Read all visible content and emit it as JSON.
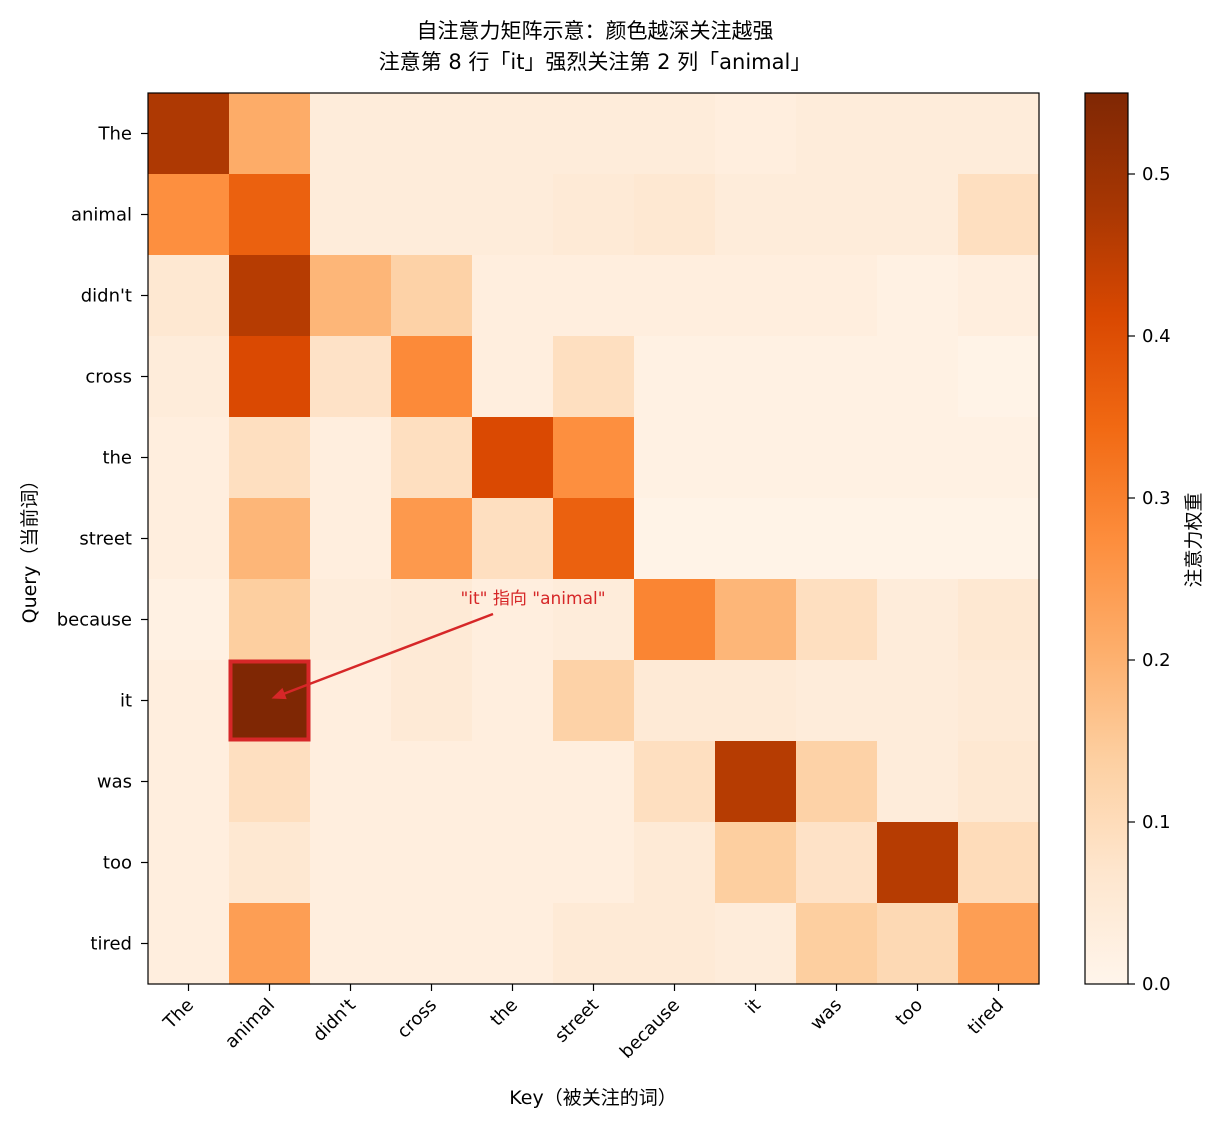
{
  "chart_data": {
    "type": "heatmap",
    "title": "自注意力矩阵示意：颜色越深关注越强",
    "subtitle": "注意第 8 行「it」强烈关注第 2 列「animal」",
    "xlabel": "Key（被关注的词）",
    "ylabel": "Query（当前词）",
    "x_tokens": [
      "The",
      "animal",
      "didn't",
      "cross",
      "the",
      "street",
      "because",
      "it",
      "was",
      "too",
      "tired"
    ],
    "y_tokens": [
      "The",
      "animal",
      "didn't",
      "cross",
      "the",
      "street",
      "because",
      "it",
      "was",
      "too",
      "tired"
    ],
    "values": [
      [
        0.47,
        0.21,
        0.04,
        0.04,
        0.04,
        0.04,
        0.04,
        0.03,
        0.04,
        0.04,
        0.04
      ],
      [
        0.27,
        0.36,
        0.04,
        0.04,
        0.04,
        0.05,
        0.06,
        0.04,
        0.04,
        0.04,
        0.09
      ],
      [
        0.06,
        0.46,
        0.19,
        0.13,
        0.03,
        0.03,
        0.03,
        0.03,
        0.03,
        0.02,
        0.03
      ],
      [
        0.04,
        0.41,
        0.08,
        0.28,
        0.03,
        0.09,
        0.02,
        0.02,
        0.02,
        0.02,
        0.01
      ],
      [
        0.03,
        0.09,
        0.03,
        0.09,
        0.41,
        0.27,
        0.02,
        0.02,
        0.02,
        0.02,
        0.02
      ],
      [
        0.03,
        0.19,
        0.03,
        0.25,
        0.09,
        0.36,
        0.01,
        0.01,
        0.01,
        0.01,
        0.01
      ],
      [
        0.02,
        0.14,
        0.04,
        0.05,
        0.03,
        0.04,
        0.29,
        0.19,
        0.09,
        0.04,
        0.06
      ],
      [
        0.03,
        0.55,
        0.03,
        0.05,
        0.03,
        0.13,
        0.05,
        0.05,
        0.04,
        0.04,
        0.05
      ],
      [
        0.03,
        0.09,
        0.03,
        0.03,
        0.03,
        0.03,
        0.09,
        0.46,
        0.13,
        0.04,
        0.06
      ],
      [
        0.03,
        0.06,
        0.03,
        0.03,
        0.03,
        0.03,
        0.05,
        0.14,
        0.08,
        0.46,
        0.1
      ],
      [
        0.03,
        0.24,
        0.03,
        0.03,
        0.03,
        0.05,
        0.05,
        0.04,
        0.14,
        0.11,
        0.24
      ]
    ],
    "vmin": 0.0,
    "vmax": 0.55,
    "colormap": "Oranges",
    "colorbar": {
      "label": "注意力权重",
      "ticks": [
        0.0,
        0.1,
        0.2,
        0.3,
        0.4,
        0.5
      ],
      "tick_labels": [
        "0.0",
        "0.1",
        "0.2",
        "0.3",
        "0.4",
        "0.5"
      ]
    },
    "annotation": {
      "text": "\"it\" 指向 \"animal\"",
      "row": 7,
      "col": 1,
      "color": "#d62728"
    }
  }
}
